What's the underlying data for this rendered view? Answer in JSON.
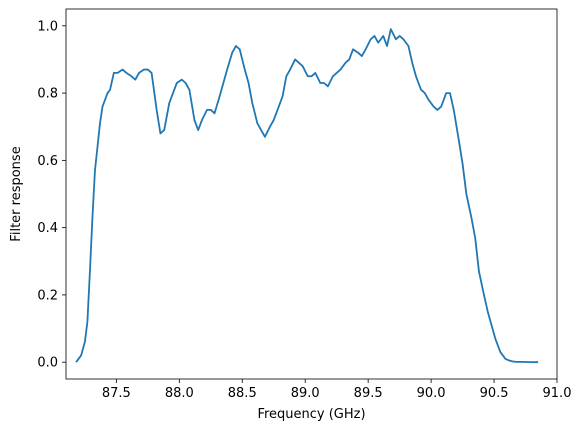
{
  "chart_data": {
    "type": "line",
    "title": "",
    "xlabel": "Frequency (GHz)",
    "ylabel": "Filter response",
    "xlim": [
      87.1,
      91.0
    ],
    "ylim": [
      -0.05,
      1.05
    ],
    "xticks": [
      87.5,
      88.0,
      88.5,
      89.0,
      89.5,
      90.0,
      90.5,
      91.0
    ],
    "xtick_labels": [
      "87.5",
      "88.0",
      "88.5",
      "89.0",
      "89.5",
      "90.0",
      "90.5",
      "91.0"
    ],
    "yticks": [
      0.0,
      0.2,
      0.4,
      0.6,
      0.8,
      1.0
    ],
    "ytick_labels": [
      "0.0",
      "0.2",
      "0.4",
      "0.6",
      "0.8",
      "1.0"
    ],
    "grid": false,
    "legend": "none",
    "series": [
      {
        "color": "#1f77b4",
        "x": [
          87.18,
          87.22,
          87.25,
          87.27,
          87.29,
          87.31,
          87.33,
          87.35,
          87.37,
          87.39,
          87.41,
          87.43,
          87.45,
          87.48,
          87.51,
          87.55,
          87.58,
          87.62,
          87.65,
          87.68,
          87.72,
          87.75,
          87.78,
          87.82,
          87.85,
          87.88,
          87.92,
          87.95,
          87.98,
          88.02,
          88.05,
          88.08,
          88.12,
          88.15,
          88.18,
          88.22,
          88.25,
          88.28,
          88.32,
          88.35,
          88.38,
          88.42,
          88.45,
          88.48,
          88.52,
          88.55,
          88.58,
          88.62,
          88.65,
          88.68,
          88.72,
          88.75,
          88.78,
          88.82,
          88.85,
          88.88,
          88.92,
          88.95,
          88.98,
          89.02,
          89.05,
          89.08,
          89.12,
          89.15,
          89.18,
          89.22,
          89.25,
          89.28,
          89.32,
          89.35,
          89.38,
          89.42,
          89.45,
          89.48,
          89.52,
          89.55,
          89.58,
          89.62,
          89.65,
          89.68,
          89.72,
          89.75,
          89.78,
          89.82,
          89.85,
          89.88,
          89.92,
          89.95,
          89.98,
          90.02,
          90.05,
          90.08,
          90.12,
          90.15,
          90.18,
          90.22,
          90.25,
          90.28,
          90.32,
          90.35,
          90.38,
          90.42,
          90.45,
          90.48,
          90.51,
          90.53,
          90.55,
          90.57,
          90.59,
          90.62,
          90.65,
          90.68,
          90.72,
          90.76,
          90.8,
          90.85
        ],
        "y": [
          0.0,
          0.02,
          0.06,
          0.12,
          0.27,
          0.43,
          0.57,
          0.64,
          0.71,
          0.76,
          0.78,
          0.8,
          0.81,
          0.86,
          0.86,
          0.87,
          0.86,
          0.85,
          0.84,
          0.86,
          0.87,
          0.87,
          0.86,
          0.75,
          0.68,
          0.69,
          0.77,
          0.8,
          0.83,
          0.84,
          0.83,
          0.81,
          0.72,
          0.69,
          0.72,
          0.75,
          0.75,
          0.74,
          0.79,
          0.83,
          0.87,
          0.92,
          0.94,
          0.93,
          0.87,
          0.83,
          0.77,
          0.71,
          0.69,
          0.67,
          0.7,
          0.72,
          0.75,
          0.79,
          0.85,
          0.87,
          0.9,
          0.89,
          0.88,
          0.85,
          0.85,
          0.86,
          0.83,
          0.83,
          0.82,
          0.85,
          0.86,
          0.87,
          0.89,
          0.9,
          0.93,
          0.92,
          0.91,
          0.93,
          0.96,
          0.97,
          0.95,
          0.97,
          0.94,
          0.99,
          0.96,
          0.97,
          0.96,
          0.94,
          0.89,
          0.85,
          0.81,
          0.8,
          0.78,
          0.76,
          0.75,
          0.76,
          0.8,
          0.8,
          0.75,
          0.66,
          0.59,
          0.5,
          0.43,
          0.37,
          0.27,
          0.2,
          0.15,
          0.11,
          0.07,
          0.05,
          0.03,
          0.02,
          0.01,
          0.005,
          0.002,
          0.001,
          0.001,
          0.0005,
          0.0002,
          0.0
        ]
      }
    ]
  }
}
